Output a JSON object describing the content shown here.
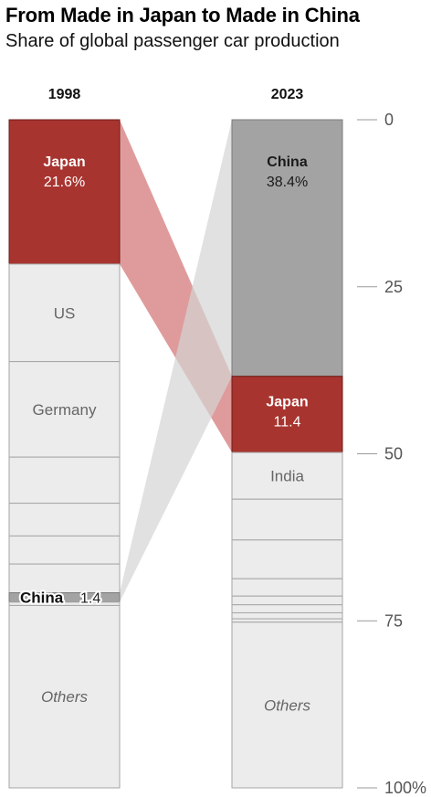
{
  "title": "From Made in Japan to Made in China",
  "subtitle": "Share of global passenger car production",
  "chart_data": {
    "type": "stacked-bar",
    "title": "From Made in Japan to Made in China",
    "subtitle": "Share of global passenger car production",
    "ylim": [
      0,
      100
    ],
    "y_ticks": [
      "0",
      "25",
      "50",
      "75",
      "100%"
    ],
    "y_tick_values": [
      0,
      25,
      50,
      75,
      100
    ],
    "columns": [
      {
        "label": "1998",
        "segments": [
          {
            "name": "Japan",
            "value": 21.6,
            "value_label": "21.6%",
            "show_name": true,
            "show_value": true,
            "highlight": "red"
          },
          {
            "name": "US",
            "value": 14.6,
            "value_label": "",
            "show_name": true,
            "show_value": false,
            "highlight": "none"
          },
          {
            "name": "Germany",
            "value": 14.3,
            "value_label": "",
            "show_name": true,
            "show_value": false,
            "highlight": "none"
          },
          {
            "name": "",
            "value": 6.9,
            "value_label": "",
            "show_name": false,
            "show_value": false,
            "highlight": "none"
          },
          {
            "name": "",
            "value": 4.9,
            "value_label": "",
            "show_name": false,
            "show_value": false,
            "highlight": "none"
          },
          {
            "name": "",
            "value": 4.2,
            "value_label": "",
            "show_name": false,
            "show_value": false,
            "highlight": "none"
          },
          {
            "name": "",
            "value": 4.3,
            "value_label": "",
            "show_name": false,
            "show_value": false,
            "highlight": "none"
          },
          {
            "name": "China",
            "value": 1.4,
            "value_label": "1.4",
            "show_name": true,
            "show_value": true,
            "highlight": "gray"
          },
          {
            "name": "",
            "value": 0.5,
            "value_label": "",
            "show_name": false,
            "show_value": false,
            "highlight": "none"
          },
          {
            "name": "Others",
            "value": 27.3,
            "value_label": "",
            "show_name": true,
            "show_value": false,
            "highlight": "none"
          }
        ]
      },
      {
        "label": "2023",
        "segments": [
          {
            "name": "China",
            "value": 38.4,
            "value_label": "38.4%",
            "show_name": true,
            "show_value": true,
            "highlight": "gray"
          },
          {
            "name": "Japan",
            "value": 11.4,
            "value_label": "11.4",
            "show_name": true,
            "show_value": true,
            "highlight": "red"
          },
          {
            "name": "India",
            "value": 7.0,
            "value_label": "",
            "show_name": true,
            "show_value": false,
            "highlight": "none"
          },
          {
            "name": "",
            "value": 6.1,
            "value_label": "",
            "show_name": false,
            "show_value": false,
            "highlight": "none"
          },
          {
            "name": "",
            "value": 5.8,
            "value_label": "",
            "show_name": false,
            "show_value": false,
            "highlight": "none"
          },
          {
            "name": "",
            "value": 2.6,
            "value_label": "",
            "show_name": false,
            "show_value": false,
            "highlight": "none"
          },
          {
            "name": "",
            "value": 1.3,
            "value_label": "",
            "show_name": false,
            "show_value": false,
            "highlight": "none"
          },
          {
            "name": "",
            "value": 1.2,
            "value_label": "",
            "show_name": false,
            "show_value": false,
            "highlight": "none"
          },
          {
            "name": "",
            "value": 0.9,
            "value_label": "",
            "show_name": false,
            "show_value": false,
            "highlight": "none"
          },
          {
            "name": "",
            "value": 0.5,
            "value_label": "",
            "show_name": false,
            "show_value": false,
            "highlight": "none"
          },
          {
            "name": "Others",
            "value": 24.8,
            "value_label": "",
            "show_name": true,
            "show_value": false,
            "highlight": "none"
          }
        ]
      }
    ],
    "links": [
      {
        "series": "Japan",
        "from_column": "1998",
        "to_column": "2023",
        "color": "red"
      },
      {
        "series": "China",
        "from_column": "1998",
        "to_column": "2023",
        "color": "gray"
      }
    ],
    "colors": {
      "red": "#a8342f",
      "red_link": "#c9585a",
      "gray": "#a3a3a3",
      "gray_link": "#d4d4d4",
      "neutral": "#ececec",
      "segment_border": "#a6a6a6",
      "label_light": "#666666",
      "tick": "#9a9a9a"
    },
    "grid": false,
    "legend": "none"
  }
}
